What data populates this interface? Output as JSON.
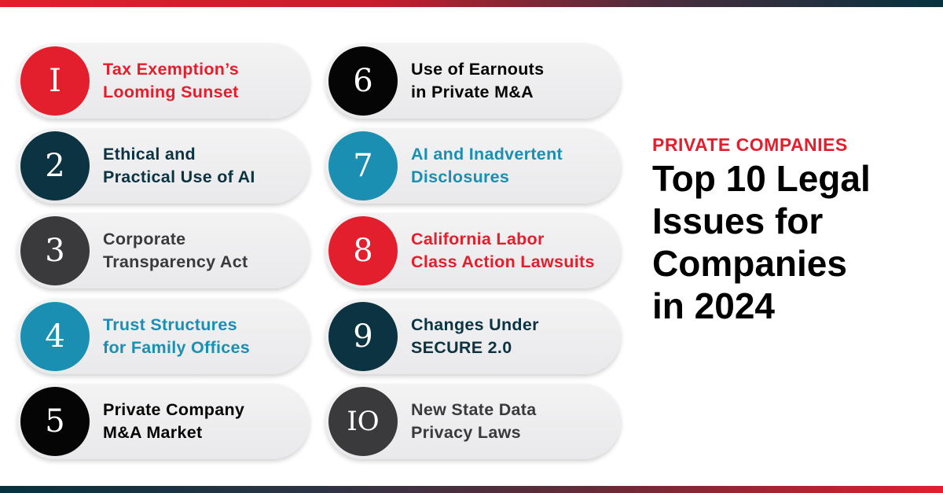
{
  "colors": {
    "red": "#e31e2d",
    "dark_teal": "#0b3342",
    "gray": "#3a3a3c",
    "teal": "#1a8fb1",
    "black": "#050505"
  },
  "header": {
    "kicker": "PRIVATE COMPANIES",
    "title": "Top 10 Legal\nIssues for\nCompanies\nin 2024"
  },
  "items": [
    {
      "num": "I",
      "label": "Tax Exemption’s\nLooming Sunset",
      "color": "#e31e2d",
      "text_color": "#e31e2d"
    },
    {
      "num": "2",
      "label": "Ethical and\nPractical Use of AI",
      "color": "#0b3342",
      "text_color": "#0b3342"
    },
    {
      "num": "3",
      "label": "Corporate\nTransparency Act",
      "color": "#3a3a3c",
      "text_color": "#3a3a3c"
    },
    {
      "num": "4",
      "label": "Trust Structures\nfor Family Offices",
      "color": "#1a8fb1",
      "text_color": "#1a8fb1"
    },
    {
      "num": "5",
      "label": "Private Company\nM&A Market",
      "color": "#050505",
      "text_color": "#050505"
    },
    {
      "num": "6",
      "label": "Use of Earnouts\nin Private M&A",
      "color": "#050505",
      "text_color": "#050505"
    },
    {
      "num": "7",
      "label": "AI and Inadvertent\nDisclosures",
      "color": "#1a8fb1",
      "text_color": "#1a8fb1"
    },
    {
      "num": "8",
      "label": "California Labor\nClass Action Lawsuits",
      "color": "#e31e2d",
      "text_color": "#e31e2d"
    },
    {
      "num": "9",
      "label": "Changes Under\nSECURE 2.0",
      "color": "#0b3342",
      "text_color": "#0b3342"
    },
    {
      "num": "IO",
      "label": "New State Data\nPrivacy Laws",
      "color": "#3a3a3c",
      "text_color": "#3a3a3c"
    }
  ]
}
